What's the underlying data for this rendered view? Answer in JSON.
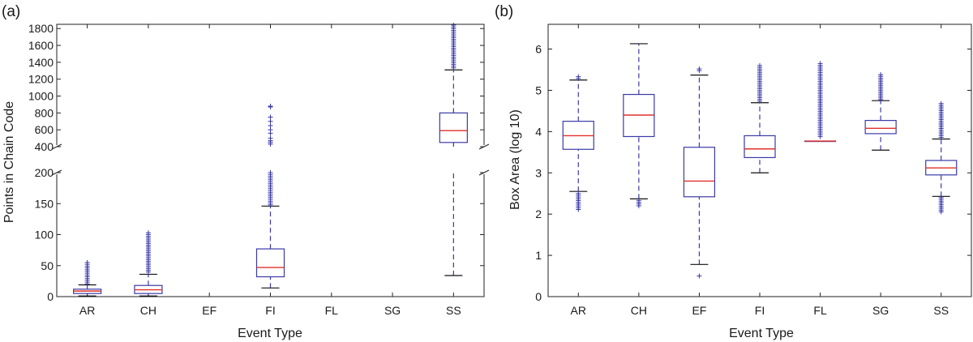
{
  "chart_data": [
    {
      "panel": "(a)",
      "type": "boxplot",
      "broken_y_axis": true,
      "xlabel": "Event Type",
      "ylabel": "Points in Chain Code",
      "categories": [
        "AR",
        "CH",
        "EF",
        "FI",
        "FL",
        "SG",
        "SS"
      ],
      "lower_segment": {
        "ylim": [
          0,
          200
        ],
        "ticks": [
          0,
          50,
          100,
          150,
          200
        ]
      },
      "upper_segment": {
        "ylim": [
          400,
          1850
        ],
        "ticks": [
          400,
          600,
          800,
          1000,
          1200,
          1400,
          1600,
          1800
        ]
      },
      "boxes": [
        {
          "category": "AR",
          "whisker_low": 1,
          "q1": 5,
          "median": 9,
          "q3": 12,
          "whisker_high": 19,
          "outliers_range": [
            20,
            55
          ]
        },
        {
          "category": "CH",
          "whisker_low": 1,
          "q1": 5,
          "median": 11,
          "q3": 18,
          "whisker_high": 36,
          "outliers_range": [
            37,
            103
          ]
        },
        {
          "category": "EF"
        },
        {
          "category": "FI",
          "whisker_low": 14,
          "q1": 32,
          "median": 47,
          "q3": 77,
          "whisker_high": 146,
          "outliers_range": [
            147,
            200
          ],
          "outliers_upper": [
            430,
            470,
            500,
            560,
            600,
            650,
            700,
            750,
            870,
            880
          ]
        },
        {
          "category": "FL"
        },
        {
          "category": "SG"
        },
        {
          "category": "SS",
          "whisker_low": 34,
          "q1": 450,
          "median": 590,
          "q3": 800,
          "whisker_high": 1310,
          "outliers_range": [
            1320,
            1850
          ]
        }
      ]
    },
    {
      "panel": "(b)",
      "type": "boxplot",
      "xlabel": "Event Type",
      "ylabel": "Box Area (log 10)",
      "categories": [
        "AR",
        "CH",
        "EF",
        "FI",
        "FL",
        "SG",
        "SS"
      ],
      "ylim": [
        0,
        6.6
      ],
      "ticks": [
        0,
        1,
        2,
        3,
        4,
        5,
        6
      ],
      "boxes": [
        {
          "category": "AR",
          "whisker_low": 2.55,
          "q1": 3.57,
          "median": 3.9,
          "q3": 4.25,
          "whisker_high": 5.25,
          "outliers_low": [
            2.1,
            2.5
          ],
          "outliers_high": [
            5.27,
            5.33
          ]
        },
        {
          "category": "CH",
          "whisker_low": 2.37,
          "q1": 3.88,
          "median": 4.4,
          "q3": 4.9,
          "whisker_high": 6.13,
          "outliers_low": [
            2.18,
            2.33
          ]
        },
        {
          "category": "EF",
          "whisker_low": 0.78,
          "q1": 2.42,
          "median": 2.8,
          "q3": 3.62,
          "whisker_high": 5.37,
          "outliers_low": [
            0.5
          ],
          "outliers_high": [
            5.45,
            5.52
          ]
        },
        {
          "category": "FI",
          "whisker_low": 3.0,
          "q1": 3.37,
          "median": 3.58,
          "q3": 3.9,
          "whisker_high": 4.7,
          "outliers_high": [
            4.72,
            5.6
          ]
        },
        {
          "category": "FL",
          "whisker_low": 3.77,
          "q1": 3.77,
          "median": 3.77,
          "q3": 3.77,
          "whisker_high": 3.77,
          "outliers_high": [
            3.85,
            5.65
          ]
        },
        {
          "category": "SG",
          "whisker_low": 3.55,
          "q1": 3.95,
          "median": 4.08,
          "q3": 4.27,
          "whisker_high": 4.75,
          "outliers_high": [
            4.77,
            5.38
          ]
        },
        {
          "category": "SS",
          "whisker_low": 2.43,
          "q1": 2.95,
          "median": 3.12,
          "q3": 3.3,
          "whisker_high": 3.82,
          "outliers_low": [
            2.05,
            2.4
          ],
          "outliers_high": [
            3.85,
            4.68
          ]
        }
      ]
    }
  ]
}
